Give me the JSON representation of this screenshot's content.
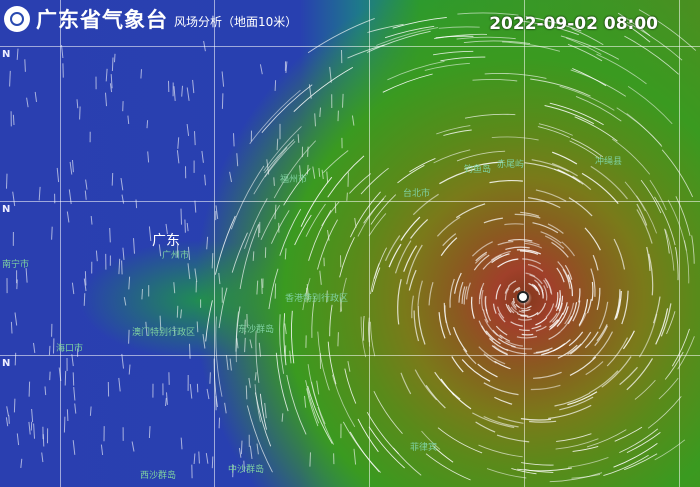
{
  "header": {
    "organization": "广东省气象台",
    "subtitle": "风场分析（地面10米）",
    "timestamp": "2022-09-02 08:00",
    "logo_icon": "meteorological-bureau-logo"
  },
  "map": {
    "lat_labels": [
      "N",
      "N",
      "N"
    ],
    "places": [
      {
        "name": "广东",
        "major": true
      },
      {
        "name": "广州市"
      },
      {
        "name": "南宁市"
      },
      {
        "name": "海口市"
      },
      {
        "name": "澳门特别行政区"
      },
      {
        "name": "香港特别行政区"
      },
      {
        "name": "东沙群岛"
      },
      {
        "name": "台北市"
      },
      {
        "name": "钓鱼岛"
      },
      {
        "name": "赤尾屿"
      },
      {
        "name": "冲绳县"
      },
      {
        "name": "福州市"
      },
      {
        "name": "西沙群岛"
      },
      {
        "name": "中沙群岛"
      },
      {
        "name": "菲律宾"
      }
    ],
    "colors": {
      "calm": "#2a3fb0",
      "moderate": "#2a9a30",
      "strong": "#a0402a",
      "streamline": "#ffffff"
    }
  }
}
